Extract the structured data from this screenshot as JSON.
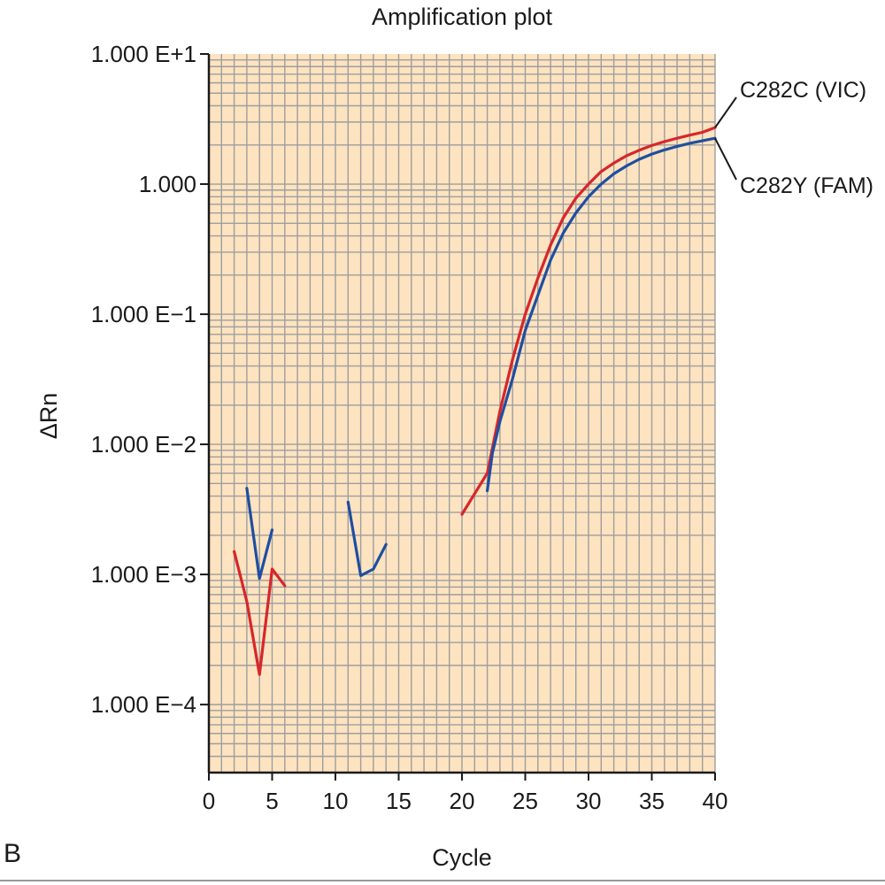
{
  "panel_label": "B",
  "chart_data": {
    "type": "line",
    "title": "Amplification plot",
    "xlabel": "Cycle",
    "ylabel": "ΔRn",
    "xlim": [
      0,
      40
    ],
    "ylim": [
      3e-05,
      10
    ],
    "y_scale": "log",
    "grid": true,
    "background_color": "#fde3c0",
    "grid_color": "#9e9e9e",
    "x_ticks": [
      0,
      5,
      10,
      15,
      20,
      25,
      30,
      35,
      40
    ],
    "y_ticks": [
      {
        "value": 10,
        "label": "1.000 E+1"
      },
      {
        "value": 1,
        "label": "1.000"
      },
      {
        "value": 0.1,
        "label": "1.000 E−1"
      },
      {
        "value": 0.01,
        "label": "1.000 E−2"
      },
      {
        "value": 0.001,
        "label": "1.000 E−3"
      },
      {
        "value": 0.0001,
        "label": "1.000 E−4"
      }
    ],
    "series": [
      {
        "name": "C282C (VIC)",
        "color": "#d7262b",
        "segments": [
          [
            [
              2,
              0.0015
            ],
            [
              3,
              0.00062
            ],
            [
              4,
              0.00017
            ],
            [
              5,
              0.0011
            ],
            [
              6,
              0.00082
            ]
          ],
          [
            [
              20,
              0.0029
            ],
            [
              22,
              0.006
            ],
            [
              23,
              0.018
            ],
            [
              24,
              0.045
            ],
            [
              25,
              0.1
            ],
            [
              26,
              0.19
            ],
            [
              27,
              0.34
            ],
            [
              28,
              0.55
            ],
            [
              29,
              0.78
            ],
            [
              30,
              1.0
            ],
            [
              31,
              1.25
            ],
            [
              32,
              1.45
            ],
            [
              33,
              1.65
            ],
            [
              34,
              1.82
            ],
            [
              35,
              1.98
            ],
            [
              36,
              2.12
            ],
            [
              37,
              2.25
            ],
            [
              38,
              2.38
            ],
            [
              39,
              2.5
            ],
            [
              40,
              2.72
            ]
          ]
        ]
      },
      {
        "name": "C282Y (FAM)",
        "color": "#1f4ea1",
        "segments": [
          [
            [
              3,
              0.0046
            ],
            [
              4,
              0.00093
            ],
            [
              5,
              0.0022
            ]
          ],
          [
            [
              11,
              0.0036
            ],
            [
              12,
              0.00098
            ],
            [
              13,
              0.0011
            ],
            [
              14,
              0.0017
            ]
          ],
          [
            [
              22,
              0.0044
            ],
            [
              22.4,
              0.0085
            ],
            [
              23,
              0.015
            ],
            [
              24,
              0.032
            ],
            [
              25,
              0.075
            ],
            [
              26,
              0.14
            ],
            [
              27,
              0.26
            ],
            [
              28,
              0.42
            ],
            [
              29,
              0.6
            ],
            [
              30,
              0.8
            ],
            [
              31,
              1.0
            ],
            [
              32,
              1.2
            ],
            [
              33,
              1.38
            ],
            [
              34,
              1.55
            ],
            [
              35,
              1.7
            ],
            [
              36,
              1.83
            ],
            [
              37,
              1.95
            ],
            [
              38,
              2.06
            ],
            [
              39,
              2.15
            ],
            [
              40,
              2.25
            ]
          ]
        ]
      }
    ]
  }
}
